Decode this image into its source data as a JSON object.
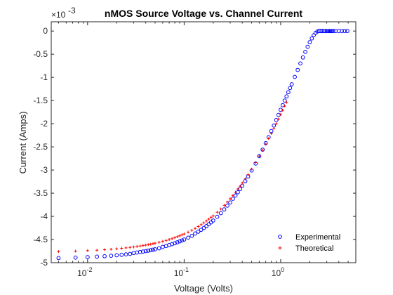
{
  "chart_data": {
    "type": "scatter",
    "title": "nMOS Source Voltage vs. Channel Current",
    "xlabel": "Voltage (Volts)",
    "ylabel": "Current (Amps)",
    "x_scale": "log",
    "xlim": [
      0.0042,
      6
    ],
    "ylim": [
      -0.005,
      0.0002
    ],
    "y_exponent_label": "×10",
    "y_exponent_power": "-3",
    "x_ticks": [
      {
        "value": 0.01,
        "base": "10",
        "exp": "-2"
      },
      {
        "value": 0.1,
        "base": "10",
        "exp": "-1"
      },
      {
        "value": 1,
        "base": "10",
        "exp": "0"
      }
    ],
    "y_ticks": [
      {
        "value": 0,
        "label": "0"
      },
      {
        "value": -0.0005,
        "label": "-0.5"
      },
      {
        "value": -0.001,
        "label": "-1"
      },
      {
        "value": -0.0015,
        "label": "-1.5"
      },
      {
        "value": -0.002,
        "label": "-2"
      },
      {
        "value": -0.0025,
        "label": "-2.5"
      },
      {
        "value": -0.003,
        "label": "-3"
      },
      {
        "value": -0.0035,
        "label": "-3.5"
      },
      {
        "value": -0.004,
        "label": "-4"
      },
      {
        "value": -0.0045,
        "label": "-4.5"
      },
      {
        "value": -0.005,
        "label": "-5"
      }
    ],
    "grid": false,
    "legend_position": "bottom-right",
    "series": [
      {
        "name": "Experimental",
        "marker": "circle",
        "color": "#0000ff",
        "x": [
          0.005,
          0.0075,
          0.01,
          0.0125,
          0.015,
          0.0175,
          0.02,
          0.0225,
          0.025,
          0.0275,
          0.03,
          0.0325,
          0.035,
          0.0375,
          0.04,
          0.0425,
          0.045,
          0.0475,
          0.05,
          0.055,
          0.06,
          0.065,
          0.07,
          0.075,
          0.08,
          0.085,
          0.09,
          0.095,
          0.1,
          0.11,
          0.12,
          0.13,
          0.14,
          0.15,
          0.16,
          0.17,
          0.18,
          0.19,
          0.2,
          0.22,
          0.24,
          0.26,
          0.28,
          0.3,
          0.32,
          0.34,
          0.36,
          0.38,
          0.4,
          0.43,
          0.46,
          0.5,
          0.55,
          0.6,
          0.65,
          0.7,
          0.75,
          0.8,
          0.85,
          0.9,
          0.95,
          1.0,
          1.05,
          1.1,
          1.15,
          1.2,
          1.25,
          1.3,
          1.4,
          1.5,
          1.6,
          1.7,
          1.8,
          1.9,
          2.0,
          2.1,
          2.2,
          2.3,
          2.4,
          2.5,
          2.6,
          2.7,
          2.8,
          2.9,
          3.0,
          3.1,
          3.2,
          3.3,
          3.4,
          3.5,
          3.7,
          4.0,
          4.3,
          4.6,
          4.9
        ],
        "y": [
          -0.0049,
          -0.00489,
          -0.00488,
          -0.00487,
          -0.00486,
          -0.00485,
          -0.00484,
          -0.00483,
          -0.00482,
          -0.00481,
          -0.00479,
          -0.00478,
          -0.00477,
          -0.00476,
          -0.00475,
          -0.00474,
          -0.00473,
          -0.00472,
          -0.00471,
          -0.00469,
          -0.00466,
          -0.00464,
          -0.00462,
          -0.0046,
          -0.00458,
          -0.00456,
          -0.00454,
          -0.00452,
          -0.0045,
          -0.00446,
          -0.00442,
          -0.00437,
          -0.00433,
          -0.00429,
          -0.00425,
          -0.00421,
          -0.00417,
          -0.00413,
          -0.00409,
          -0.00401,
          -0.00393,
          -0.00385,
          -0.00377,
          -0.0037,
          -0.00362,
          -0.00355,
          -0.00348,
          -0.00341,
          -0.00334,
          -0.00324,
          -0.00314,
          -0.00301,
          -0.00286,
          -0.0027,
          -0.00256,
          -0.00242,
          -0.00229,
          -0.00216,
          -0.00204,
          -0.00192,
          -0.00181,
          -0.0017,
          -0.0016,
          -0.0015,
          -0.00141,
          -0.00132,
          -0.00123,
          -0.00115,
          -0.00099,
          -0.00084,
          -0.0007,
          -0.00057,
          -0.00045,
          -0.00034,
          -0.00024,
          -0.00016,
          -9e-05,
          -4e-05,
          -1e-05,
          0.0,
          0.0,
          0.0,
          0.0,
          0.0,
          0.0,
          0.0,
          0.0,
          0.0,
          0.0,
          0.0,
          0.0,
          0.0,
          0.0,
          0.0,
          0.0
        ]
      },
      {
        "name": "Theoretical",
        "marker": "plus",
        "color": "#ff0000",
        "x": [
          0.005,
          0.0075,
          0.01,
          0.0125,
          0.015,
          0.0175,
          0.02,
          0.0225,
          0.025,
          0.0275,
          0.03,
          0.0325,
          0.035,
          0.0375,
          0.04,
          0.0425,
          0.045,
          0.0475,
          0.05,
          0.055,
          0.06,
          0.065,
          0.07,
          0.075,
          0.08,
          0.085,
          0.09,
          0.095,
          0.1,
          0.11,
          0.12,
          0.13,
          0.14,
          0.15,
          0.16,
          0.17,
          0.18,
          0.19,
          0.2,
          0.22,
          0.24,
          0.26,
          0.28,
          0.3,
          0.32,
          0.34,
          0.36,
          0.38,
          0.4,
          0.43,
          0.46,
          0.5,
          0.55,
          0.6,
          0.65,
          0.7,
          0.75,
          0.8,
          0.85,
          0.9,
          0.95,
          1.0,
          1.05,
          1.1,
          1.15
        ],
        "y": [
          -0.00476,
          -0.00475,
          -0.00474,
          -0.00473,
          -0.00472,
          -0.00471,
          -0.0047,
          -0.00469,
          -0.00468,
          -0.00467,
          -0.00466,
          -0.00465,
          -0.00464,
          -0.00463,
          -0.00462,
          -0.00461,
          -0.0046,
          -0.00459,
          -0.00458,
          -0.00456,
          -0.00454,
          -0.00452,
          -0.0045,
          -0.00448,
          -0.00446,
          -0.00444,
          -0.00442,
          -0.0044,
          -0.00438,
          -0.00434,
          -0.0043,
          -0.00426,
          -0.00422,
          -0.00418,
          -0.00414,
          -0.0041,
          -0.00406,
          -0.00402,
          -0.00399,
          -0.00391,
          -0.00384,
          -0.00376,
          -0.00369,
          -0.00362,
          -0.00355,
          -0.00348,
          -0.00341,
          -0.00335,
          -0.00328,
          -0.00319,
          -0.0031,
          -0.00298,
          -0.00284,
          -0.0027,
          -0.00257,
          -0.00244,
          -0.00232,
          -0.00221,
          -0.0021,
          -0.002,
          -0.0019,
          -0.0018,
          -0.00171,
          -0.00162,
          -0.00154
        ]
      }
    ]
  }
}
